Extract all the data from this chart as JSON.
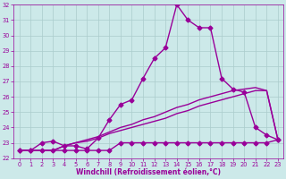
{
  "xlabel": "Windchill (Refroidissement éolien,°C)",
  "x": [
    0,
    1,
    2,
    3,
    4,
    5,
    6,
    7,
    8,
    9,
    10,
    11,
    12,
    13,
    14,
    15,
    16,
    17,
    18,
    19,
    20,
    21,
    22,
    23
  ],
  "line1_x": [
    0,
    1,
    2,
    3,
    4,
    5,
    6,
    7,
    8,
    9,
    10,
    11,
    12,
    13,
    14,
    15,
    16,
    17,
    18,
    19,
    20,
    21,
    22,
    23
  ],
  "line1_y": [
    22.5,
    22.5,
    22.5,
    22.5,
    22.5,
    22.5,
    22.5,
    22.5,
    22.5,
    23.0,
    23.0,
    23.0,
    23.0,
    23.0,
    23.0,
    23.0,
    23.0,
    23.0,
    23.0,
    23.0,
    23.0,
    23.0,
    23.0,
    23.2
  ],
  "line2_x": [
    0,
    1,
    2,
    3,
    4,
    5,
    6,
    7,
    8,
    9,
    10,
    11,
    12,
    13,
    14,
    15,
    16,
    17,
    18,
    19,
    20,
    21,
    22,
    23
  ],
  "line2_y": [
    22.5,
    22.5,
    23.0,
    23.1,
    22.8,
    22.8,
    22.6,
    23.3,
    24.5,
    25.5,
    25.8,
    27.2,
    28.5,
    29.2,
    32.0,
    31.0,
    30.5,
    30.5,
    27.2,
    26.5,
    26.3,
    24.0,
    23.5,
    23.2
  ],
  "line3_x": [
    0,
    1,
    2,
    3,
    4,
    5,
    6,
    7,
    8,
    9,
    10,
    11,
    12,
    13,
    14,
    15,
    16,
    17,
    18,
    19,
    20,
    21,
    22,
    23
  ],
  "line3_y": [
    22.5,
    22.5,
    22.5,
    22.5,
    22.8,
    23.0,
    23.1,
    23.3,
    23.6,
    23.8,
    24.0,
    24.2,
    24.4,
    24.6,
    24.9,
    25.1,
    25.4,
    25.6,
    25.8,
    26.0,
    26.2,
    26.4,
    26.4,
    23.2
  ],
  "line4_x": [
    0,
    1,
    2,
    3,
    4,
    5,
    6,
    7,
    8,
    9,
    10,
    11,
    12,
    13,
    14,
    15,
    16,
    17,
    18,
    19,
    20,
    21,
    22,
    23
  ],
  "line4_y": [
    22.5,
    22.5,
    22.5,
    22.5,
    22.8,
    23.0,
    23.2,
    23.4,
    23.7,
    24.0,
    24.2,
    24.5,
    24.7,
    25.0,
    25.3,
    25.5,
    25.8,
    26.0,
    26.2,
    26.4,
    26.5,
    26.6,
    26.4,
    23.2
  ],
  "ylim": [
    22,
    32
  ],
  "xlim": [
    -0.5,
    23.5
  ],
  "yticks": [
    22,
    23,
    24,
    25,
    26,
    27,
    28,
    29,
    30,
    31,
    32
  ],
  "xticks": [
    0,
    1,
    2,
    3,
    4,
    5,
    6,
    7,
    8,
    9,
    10,
    11,
    12,
    13,
    14,
    15,
    16,
    17,
    18,
    19,
    20,
    21,
    22,
    23
  ],
  "bg_color": "#cce9e9",
  "line_color": "#990099",
  "grid_color": "#aacccc",
  "markersize": 2.5,
  "linewidth": 1.0
}
